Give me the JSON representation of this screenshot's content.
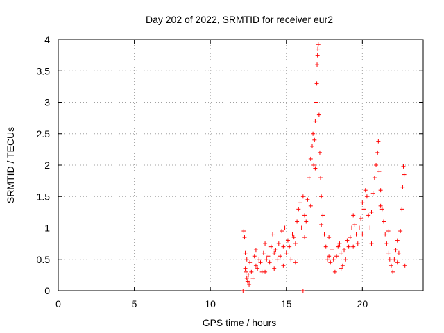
{
  "chart_data": {
    "type": "scatter",
    "title": "Day 202 of 2022, SRMTID for receiver eur2",
    "xlabel": "GPS time / hours",
    "ylabel": "SRMTID / TECUs",
    "xlim": [
      0,
      24
    ],
    "ylim": [
      0,
      4
    ],
    "x_ticks": [
      0,
      5,
      10,
      15,
      20
    ],
    "x_tick_labels": [
      "0",
      "5",
      "10",
      "15",
      "20"
    ],
    "y_ticks": [
      0,
      0.5,
      1,
      1.5,
      2,
      2.5,
      3,
      3.5,
      4
    ],
    "y_tick_labels": [
      "0",
      "0.5",
      "1",
      "1.5",
      "2",
      "2.5",
      "3",
      "3.5",
      "4"
    ],
    "grid": true,
    "marker": "+",
    "series": [
      {
        "name": "SRMTID",
        "color": "#ff0000",
        "points": [
          [
            12.2,
            0.95
          ],
          [
            12.25,
            0.85
          ],
          [
            12.3,
            0.6
          ],
          [
            12.3,
            0.35
          ],
          [
            12.35,
            0.3
          ],
          [
            12.4,
            0.2
          ],
          [
            12.45,
            0.15
          ],
          [
            12.5,
            0.25
          ],
          [
            12.55,
            0.1
          ],
          [
            12.6,
            0.45
          ],
          [
            12.7,
            0.3
          ],
          [
            12.8,
            0.2
          ],
          [
            12.9,
            0.55
          ],
          [
            13.0,
            0.4
          ],
          [
            13.1,
            0.35
          ],
          [
            13.2,
            0.5
          ],
          [
            13.3,
            0.45
          ],
          [
            13.4,
            0.3
          ],
          [
            13.5,
            0.6
          ],
          [
            13.6,
            0.75
          ],
          [
            13.7,
            0.5
          ],
          [
            13.8,
            0.55
          ],
          [
            13.9,
            0.45
          ],
          [
            14.0,
            0.7
          ],
          [
            14.1,
            0.9
          ],
          [
            14.2,
            0.6
          ],
          [
            14.3,
            0.65
          ],
          [
            14.4,
            0.5
          ],
          [
            14.5,
            0.75
          ],
          [
            14.6,
            0.55
          ],
          [
            14.7,
            0.95
          ],
          [
            14.8,
            0.7
          ],
          [
            14.9,
            1.0
          ],
          [
            15.0,
            0.6
          ],
          [
            15.1,
            0.8
          ],
          [
            15.2,
            0.7
          ],
          [
            15.3,
            0.5
          ],
          [
            15.4,
            0.9
          ],
          [
            15.5,
            0.85
          ],
          [
            15.6,
            0.75
          ],
          [
            15.7,
            1.1
          ],
          [
            15.8,
            1.3
          ],
          [
            15.9,
            1.4
          ],
          [
            16.0,
            1.0
          ],
          [
            16.1,
            1.5
          ],
          [
            16.2,
            1.2
          ],
          [
            16.3,
            1.1
          ],
          [
            16.4,
            1.45
          ],
          [
            16.5,
            1.8
          ],
          [
            16.6,
            2.1
          ],
          [
            16.7,
            2.3
          ],
          [
            16.75,
            2.5
          ],
          [
            16.8,
            2.0
          ],
          [
            16.85,
            2.4
          ],
          [
            16.9,
            2.7
          ],
          [
            16.95,
            3.0
          ],
          [
            17.0,
            3.3
          ],
          [
            17.02,
            3.6
          ],
          [
            17.05,
            3.75
          ],
          [
            17.07,
            3.85
          ],
          [
            17.1,
            3.92
          ],
          [
            17.15,
            2.8
          ],
          [
            17.2,
            2.2
          ],
          [
            17.25,
            1.8
          ],
          [
            17.3,
            1.5
          ],
          [
            17.4,
            1.2
          ],
          [
            17.5,
            0.9
          ],
          [
            17.6,
            0.7
          ],
          [
            17.7,
            0.5
          ],
          [
            17.8,
            0.55
          ],
          [
            17.9,
            0.45
          ],
          [
            18.0,
            0.65
          ],
          [
            18.1,
            0.5
          ],
          [
            18.2,
            0.3
          ],
          [
            18.3,
            0.55
          ],
          [
            18.4,
            0.7
          ],
          [
            18.5,
            0.75
          ],
          [
            18.6,
            0.6
          ],
          [
            18.7,
            0.4
          ],
          [
            18.8,
            0.65
          ],
          [
            18.9,
            0.5
          ],
          [
            19.0,
            0.8
          ],
          [
            19.1,
            0.7
          ],
          [
            19.2,
            0.85
          ],
          [
            19.3,
            1.0
          ],
          [
            19.4,
            1.2
          ],
          [
            19.5,
            1.05
          ],
          [
            19.6,
            0.9
          ],
          [
            19.7,
            0.75
          ],
          [
            19.8,
            1.0
          ],
          [
            19.9,
            1.15
          ],
          [
            20.0,
            1.4
          ],
          [
            20.1,
            1.3
          ],
          [
            20.2,
            1.6
          ],
          [
            20.3,
            1.5
          ],
          [
            20.4,
            1.2
          ],
          [
            20.5,
            1.0
          ],
          [
            20.6,
            1.25
          ],
          [
            20.7,
            1.55
          ],
          [
            20.8,
            1.8
          ],
          [
            20.9,
            2.0
          ],
          [
            21.0,
            2.2
          ],
          [
            21.05,
            2.38
          ],
          [
            21.1,
            1.9
          ],
          [
            21.2,
            1.6
          ],
          [
            21.3,
            1.3
          ],
          [
            21.4,
            1.1
          ],
          [
            21.5,
            0.9
          ],
          [
            21.6,
            0.75
          ],
          [
            21.7,
            0.6
          ],
          [
            21.8,
            0.5
          ],
          [
            21.9,
            0.4
          ],
          [
            22.0,
            0.3
          ],
          [
            22.1,
            0.5
          ],
          [
            22.2,
            0.65
          ],
          [
            22.3,
            0.8
          ],
          [
            22.4,
            0.6
          ],
          [
            22.5,
            0.95
          ],
          [
            22.6,
            1.3
          ],
          [
            22.65,
            1.65
          ],
          [
            22.7,
            1.98
          ],
          [
            22.75,
            1.85
          ],
          [
            22.8,
            0.4
          ],
          [
            12.4,
            0.5
          ],
          [
            13.0,
            0.65
          ],
          [
            13.6,
            0.3
          ],
          [
            14.2,
            0.35
          ],
          [
            14.8,
            0.4
          ],
          [
            15.6,
            0.45
          ],
          [
            16.2,
            0.85
          ],
          [
            16.6,
            1.35
          ],
          [
            16.9,
            1.95
          ],
          [
            17.3,
            1.05
          ],
          [
            17.8,
            0.85
          ],
          [
            18.6,
            0.35
          ],
          [
            19.4,
            0.7
          ],
          [
            20.0,
            0.9
          ],
          [
            20.6,
            0.75
          ],
          [
            21.2,
            1.35
          ],
          [
            21.7,
            0.95
          ],
          [
            22.3,
            0.45
          ],
          [
            12.15,
            0.0
          ],
          [
            16.1,
            0.0
          ]
        ]
      }
    ]
  }
}
